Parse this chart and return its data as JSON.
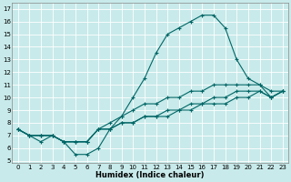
{
  "xlabel": "Humidex (Indice chaleur)",
  "bg_color": "#c8eaea",
  "grid_color": "#ffffff",
  "line_color": "#006666",
  "xlim": [
    -0.5,
    23.5
  ],
  "ylim": [
    4.8,
    17.5
  ],
  "yticks": [
    5,
    6,
    7,
    8,
    9,
    10,
    11,
    12,
    13,
    14,
    15,
    16,
    17
  ],
  "xticks": [
    0,
    1,
    2,
    3,
    4,
    5,
    6,
    7,
    8,
    9,
    10,
    11,
    12,
    13,
    14,
    15,
    16,
    17,
    18,
    19,
    20,
    21,
    22,
    23
  ],
  "series": [
    [
      7.5,
      7.0,
      6.5,
      7.0,
      6.5,
      5.5,
      5.5,
      6.0,
      7.5,
      8.5,
      10.0,
      11.5,
      13.5,
      15.0,
      15.5,
      16.0,
      16.5,
      16.5,
      15.5,
      13.0,
      11.5,
      11.0,
      10.5,
      10.5
    ],
    [
      7.5,
      7.0,
      7.0,
      7.0,
      6.5,
      6.5,
      6.5,
      7.5,
      8.0,
      8.5,
      9.0,
      9.5,
      9.5,
      10.0,
      10.0,
      10.5,
      10.5,
      11.0,
      11.0,
      11.0,
      11.0,
      11.0,
      10.0,
      10.5
    ],
    [
      7.5,
      7.0,
      7.0,
      7.0,
      6.5,
      6.5,
      6.5,
      7.5,
      7.5,
      8.0,
      8.0,
      8.5,
      8.5,
      9.0,
      9.0,
      9.5,
      9.5,
      10.0,
      10.0,
      10.5,
      10.5,
      10.5,
      10.0,
      10.5
    ],
    [
      7.5,
      7.0,
      7.0,
      7.0,
      6.5,
      6.5,
      6.5,
      7.5,
      7.5,
      8.0,
      8.0,
      8.5,
      8.5,
      8.5,
      9.0,
      9.0,
      9.5,
      9.5,
      9.5,
      10.0,
      10.0,
      10.5,
      10.0,
      10.5
    ]
  ]
}
